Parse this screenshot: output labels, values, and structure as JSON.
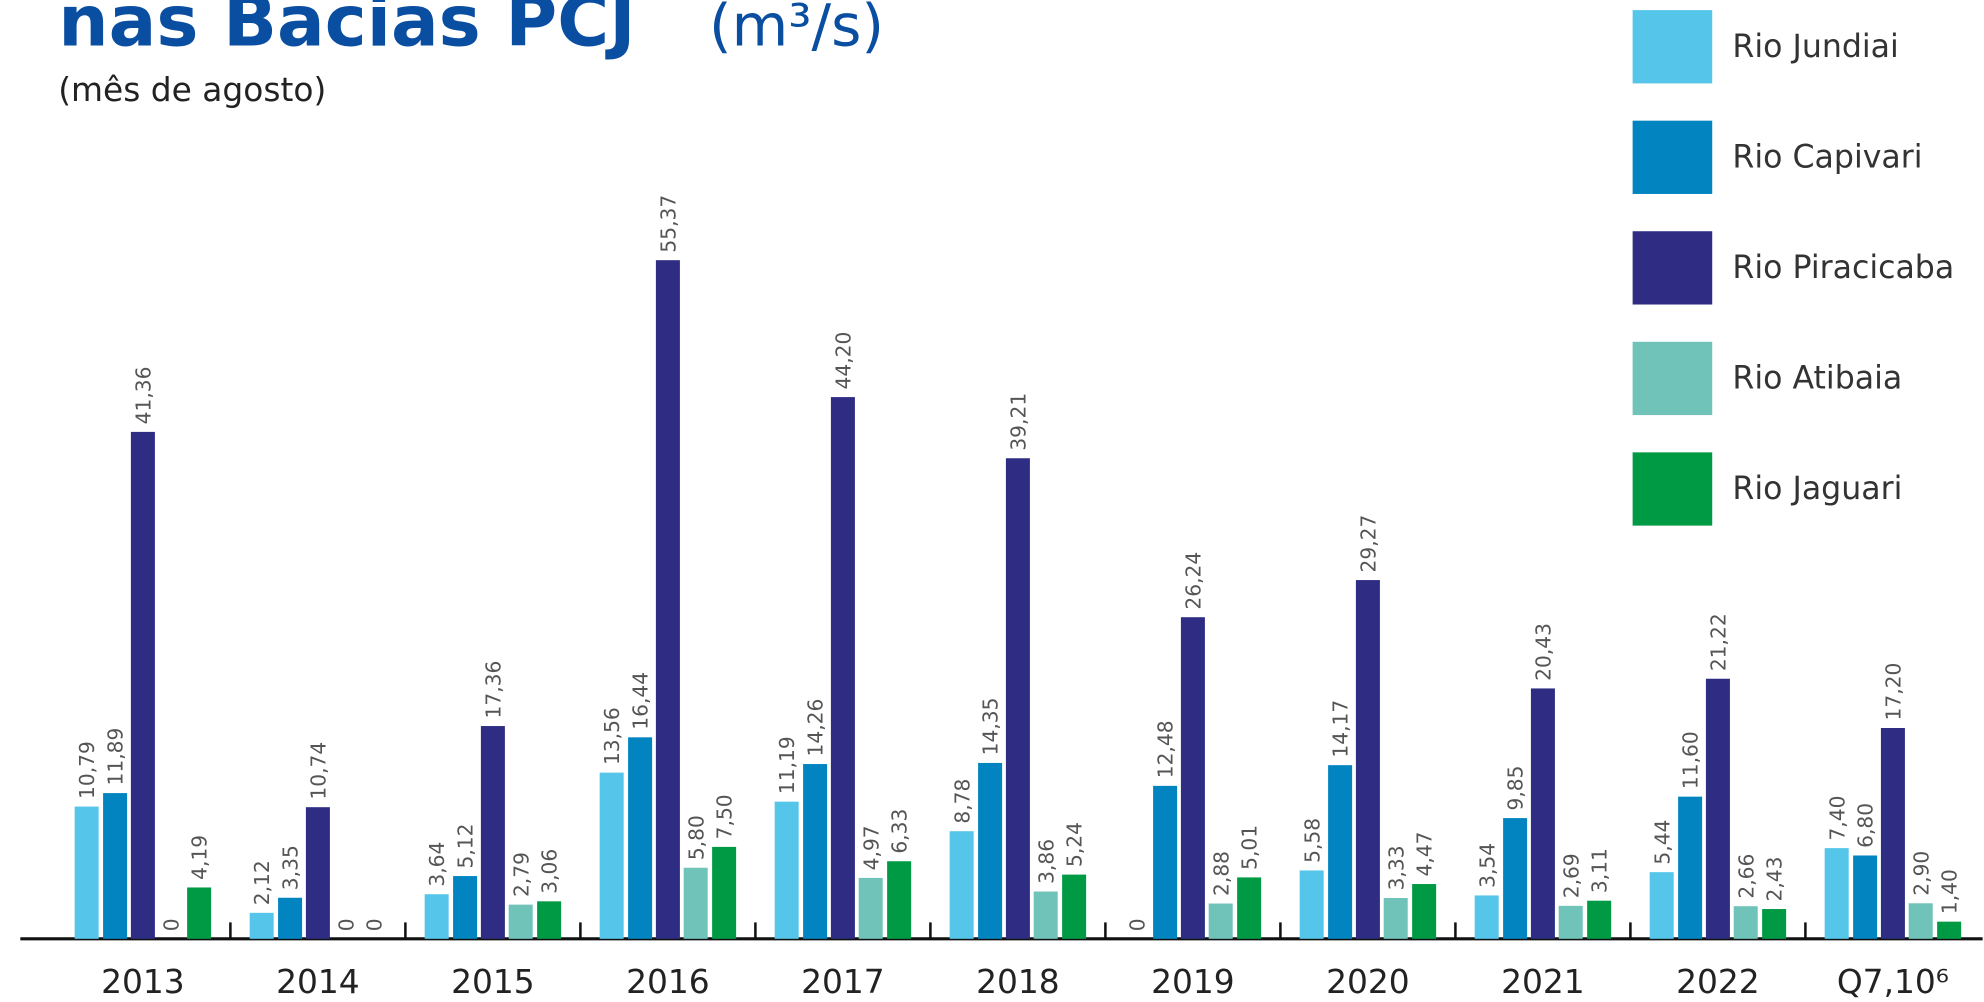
{
  "chart_data": {
    "type": "bar",
    "title": "nas Bacias PCJ",
    "unit": "(m³/s)",
    "subtitle": "(mês de agosto)",
    "categories": [
      "2013",
      "2014",
      "2015",
      "2016",
      "2017",
      "2018",
      "2019",
      "2020",
      "2021",
      "2022",
      "Q7,10⁶"
    ],
    "series": [
      {
        "name": "Rio Jundiai",
        "color": "#56c5ea",
        "values": [
          10.79,
          2.12,
          3.64,
          13.56,
          11.19,
          8.78,
          0,
          5.58,
          3.54,
          5.44,
          7.4
        ],
        "value_labels": [
          "10,79",
          "2,12",
          "3,64",
          "13,56",
          "11,19",
          "8,78",
          "0",
          "5,58",
          "3,54",
          "5,44",
          "7,40"
        ]
      },
      {
        "name": "Rio Capivari",
        "color": "#0284c0",
        "values": [
          11.89,
          3.35,
          5.12,
          16.44,
          14.26,
          14.35,
          12.48,
          14.17,
          9.85,
          11.6,
          6.8
        ],
        "value_labels": [
          "11,89",
          "3,35",
          "5,12",
          "16,44",
          "14,26",
          "14,35",
          "12,48",
          "14,17",
          "9,85",
          "11,60",
          "6,80"
        ]
      },
      {
        "name": "Rio Piracicaba",
        "color": "#2e2d83",
        "values": [
          41.36,
          10.74,
          17.36,
          55.37,
          44.2,
          39.21,
          26.24,
          29.27,
          20.43,
          21.22,
          17.2
        ],
        "value_labels": [
          "41,36",
          "10,74",
          "17,36",
          "55,37",
          "44,20",
          "39,21",
          "26,24",
          "29,27",
          "20,43",
          "21,22",
          "17,20"
        ]
      },
      {
        "name": "Rio Atibaia",
        "color": "#6fc3b9",
        "values": [
          0,
          0,
          2.79,
          5.8,
          4.97,
          3.86,
          2.88,
          3.33,
          2.69,
          2.66,
          2.9
        ],
        "value_labels": [
          "0",
          "0",
          "2,79",
          "5,80",
          "4,97",
          "3,86",
          "2,88",
          "3,33",
          "2,69",
          "2,66",
          "2,90"
        ]
      },
      {
        "name": "Rio Jaguari",
        "color": "#009a44",
        "values": [
          4.19,
          0,
          3.06,
          7.5,
          6.33,
          5.24,
          5.01,
          4.47,
          3.11,
          2.43,
          1.4
        ],
        "value_labels": [
          "4,19",
          "0",
          "3,06",
          "7,50",
          "6,33",
          "5,24",
          "5,01",
          "4,47",
          "3,11",
          "2,43",
          "1,40"
        ]
      }
    ]
  }
}
